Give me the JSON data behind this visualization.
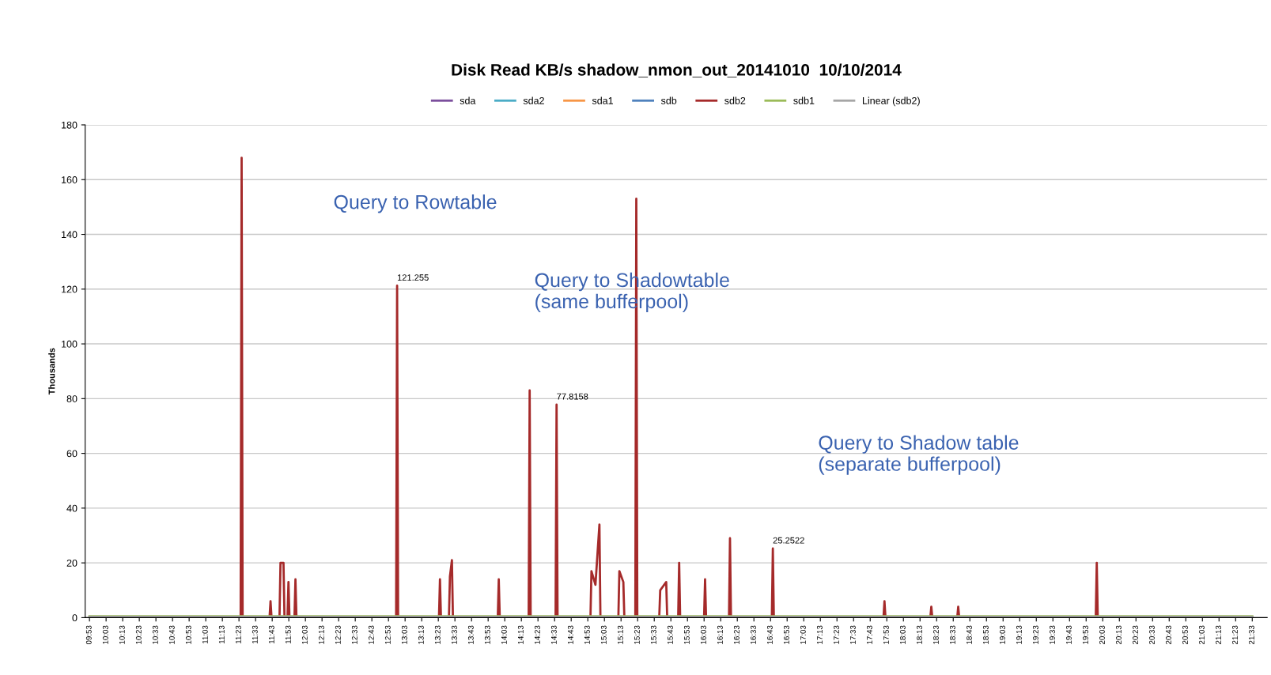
{
  "chart_data": {
    "type": "line",
    "title": "Disk Read KB/s shadow_nmon_out_20141010  10/10/2014",
    "ylabel": "Thousands",
    "xlim": [
      9.84,
      21.7
    ],
    "ylim": [
      0,
      180
    ],
    "yticks": [
      0,
      20,
      40,
      60,
      80,
      100,
      120,
      140,
      160,
      180
    ],
    "xticks": [
      {
        "value": 9.8833,
        "label": "09:53"
      },
      {
        "value": 10.05,
        "label": "10:03"
      },
      {
        "value": 10.2167,
        "label": "10:13"
      },
      {
        "value": 10.3833,
        "label": "10:23"
      },
      {
        "value": 10.55,
        "label": "10:33"
      },
      {
        "value": 10.7167,
        "label": "10:43"
      },
      {
        "value": 10.8833,
        "label": "10:53"
      },
      {
        "value": 11.05,
        "label": "11:03"
      },
      {
        "value": 11.2167,
        "label": "11:13"
      },
      {
        "value": 11.3833,
        "label": "11:23"
      },
      {
        "value": 11.55,
        "label": "11:33"
      },
      {
        "value": 11.7167,
        "label": "11:43"
      },
      {
        "value": 11.8833,
        "label": "11:53"
      },
      {
        "value": 12.05,
        "label": "12:03"
      },
      {
        "value": 12.2167,
        "label": "12:13"
      },
      {
        "value": 12.3833,
        "label": "12:23"
      },
      {
        "value": 12.55,
        "label": "12:33"
      },
      {
        "value": 12.7167,
        "label": "12:43"
      },
      {
        "value": 12.8833,
        "label": "12:53"
      },
      {
        "value": 13.05,
        "label": "13:03"
      },
      {
        "value": 13.2167,
        "label": "13:13"
      },
      {
        "value": 13.3833,
        "label": "13:23"
      },
      {
        "value": 13.55,
        "label": "13:33"
      },
      {
        "value": 13.7167,
        "label": "13:43"
      },
      {
        "value": 13.8833,
        "label": "13:53"
      },
      {
        "value": 14.05,
        "label": "14:03"
      },
      {
        "value": 14.2167,
        "label": "14:13"
      },
      {
        "value": 14.3833,
        "label": "14:23"
      },
      {
        "value": 14.55,
        "label": "14:33"
      },
      {
        "value": 14.7167,
        "label": "14:43"
      },
      {
        "value": 14.8833,
        "label": "14:53"
      },
      {
        "value": 15.05,
        "label": "15:03"
      },
      {
        "value": 15.2167,
        "label": "15:13"
      },
      {
        "value": 15.3833,
        "label": "15:23"
      },
      {
        "value": 15.55,
        "label": "15:33"
      },
      {
        "value": 15.7167,
        "label": "15:43"
      },
      {
        "value": 15.8833,
        "label": "15:53"
      },
      {
        "value": 16.05,
        "label": "16:03"
      },
      {
        "value": 16.2167,
        "label": "16:13"
      },
      {
        "value": 16.3833,
        "label": "16:23"
      },
      {
        "value": 16.55,
        "label": "16:33"
      },
      {
        "value": 16.7167,
        "label": "16:43"
      },
      {
        "value": 16.8833,
        "label": "16:53"
      },
      {
        "value": 17.05,
        "label": "17:03"
      },
      {
        "value": 17.2167,
        "label": "17:13"
      },
      {
        "value": 17.3833,
        "label": "17:23"
      },
      {
        "value": 17.55,
        "label": "17:33"
      },
      {
        "value": 17.7167,
        "label": "17:43"
      },
      {
        "value": 17.8833,
        "label": "17:53"
      },
      {
        "value": 18.05,
        "label": "18:03"
      },
      {
        "value": 18.2167,
        "label": "18:13"
      },
      {
        "value": 18.3833,
        "label": "18:23"
      },
      {
        "value": 18.55,
        "label": "18:33"
      },
      {
        "value": 18.7167,
        "label": "18:43"
      },
      {
        "value": 18.8833,
        "label": "18:53"
      },
      {
        "value": 19.05,
        "label": "19:03"
      },
      {
        "value": 19.2167,
        "label": "19:13"
      },
      {
        "value": 19.3833,
        "label": "19:23"
      },
      {
        "value": 19.55,
        "label": "19:33"
      },
      {
        "value": 19.7167,
        "label": "19:43"
      },
      {
        "value": 19.8833,
        "label": "19:53"
      },
      {
        "value": 20.05,
        "label": "20:03"
      },
      {
        "value": 20.2167,
        "label": "20:13"
      },
      {
        "value": 20.3833,
        "label": "20:23"
      },
      {
        "value": 20.55,
        "label": "20:33"
      },
      {
        "value": 20.7167,
        "label": "20:43"
      },
      {
        "value": 20.8833,
        "label": "20:53"
      },
      {
        "value": 21.05,
        "label": "21:03"
      },
      {
        "value": 21.2167,
        "label": "21:13"
      },
      {
        "value": 21.3833,
        "label": "21:23"
      },
      {
        "value": 21.55,
        "label": "21:33"
      }
    ],
    "grid": "y",
    "legend": "top",
    "marker": "none",
    "line_style": "solid",
    "series": [
      {
        "name": "sda",
        "color": "#7b4f9d"
      },
      {
        "name": "sda2",
        "color": "#4bacc6"
      },
      {
        "name": "sda1",
        "color": "#f79646"
      },
      {
        "name": "sdb",
        "color": "#4f81bd"
      },
      {
        "name": "sdb2",
        "color": "#a52a2a",
        "x": [
          9.8833,
          11.4,
          11.41,
          11.42,
          11.69,
          11.7,
          11.71,
          11.79,
          11.8,
          11.83,
          11.84,
          11.87,
          11.88,
          11.89,
          11.94,
          11.95,
          11.96,
          12.96,
          12.97,
          12.98,
          13.39,
          13.4,
          13.41,
          13.49,
          13.5,
          13.52,
          13.53,
          13.98,
          13.99,
          14.0,
          14.29,
          14.3,
          14.31,
          14.56,
          14.57,
          14.58,
          14.91,
          14.92,
          14.96,
          15.0,
          15.01,
          15.19,
          15.2,
          15.24,
          15.25,
          15.36,
          15.37,
          15.38,
          15.6,
          15.61,
          15.67,
          15.68,
          15.79,
          15.8,
          15.81,
          16.05,
          16.06,
          16.07,
          16.3,
          16.31,
          16.32,
          16.73,
          16.74,
          16.75,
          17.85,
          17.86,
          17.87,
          18.32,
          18.33,
          18.34,
          18.59,
          18.6,
          18.61,
          19.98,
          19.99,
          20.0,
          21.55
        ],
        "values": [
          0,
          0,
          168,
          0,
          0,
          6,
          0,
          0,
          20,
          20,
          0,
          0,
          13,
          0,
          0,
          14,
          0,
          0,
          121.255,
          0,
          0,
          14,
          0,
          0,
          15,
          21,
          0,
          0,
          14,
          0,
          0,
          83,
          0,
          0,
          77.8158,
          0,
          0,
          17,
          12,
          34,
          0,
          0,
          17,
          13,
          0,
          0,
          153,
          0,
          0,
          10,
          13,
          0,
          0,
          20,
          0,
          0,
          14,
          0,
          0,
          29,
          0,
          0,
          25.2522,
          0,
          0,
          6,
          0,
          0,
          4,
          0,
          0,
          4,
          0,
          0,
          20,
          0,
          0
        ]
      },
      {
        "name": "sdb1",
        "color": "#9bbb59",
        "x": [
          9.8833,
          21.55
        ],
        "values": [
          0.5,
          0.5
        ]
      },
      {
        "name": "Linear (sdb2)",
        "color": "#a6a6a6",
        "x": [
          9.8833,
          21.55
        ],
        "values": [
          0.3,
          0.3
        ]
      }
    ],
    "annotations": [
      {
        "text": "Query to Rowtable"
      },
      {
        "text": "Query to Shadowtable\n(same bufferpool)"
      },
      {
        "text": "Query to Shadow table\n(separate bufferpool)"
      },
      {
        "text": "121.255",
        "x": 12.97,
        "y": 121.255
      },
      {
        "text": "77.8158",
        "x": 14.57,
        "y": 77.8158
      },
      {
        "text": "25.2522",
        "x": 16.74,
        "y": 25.2522
      }
    ]
  }
}
